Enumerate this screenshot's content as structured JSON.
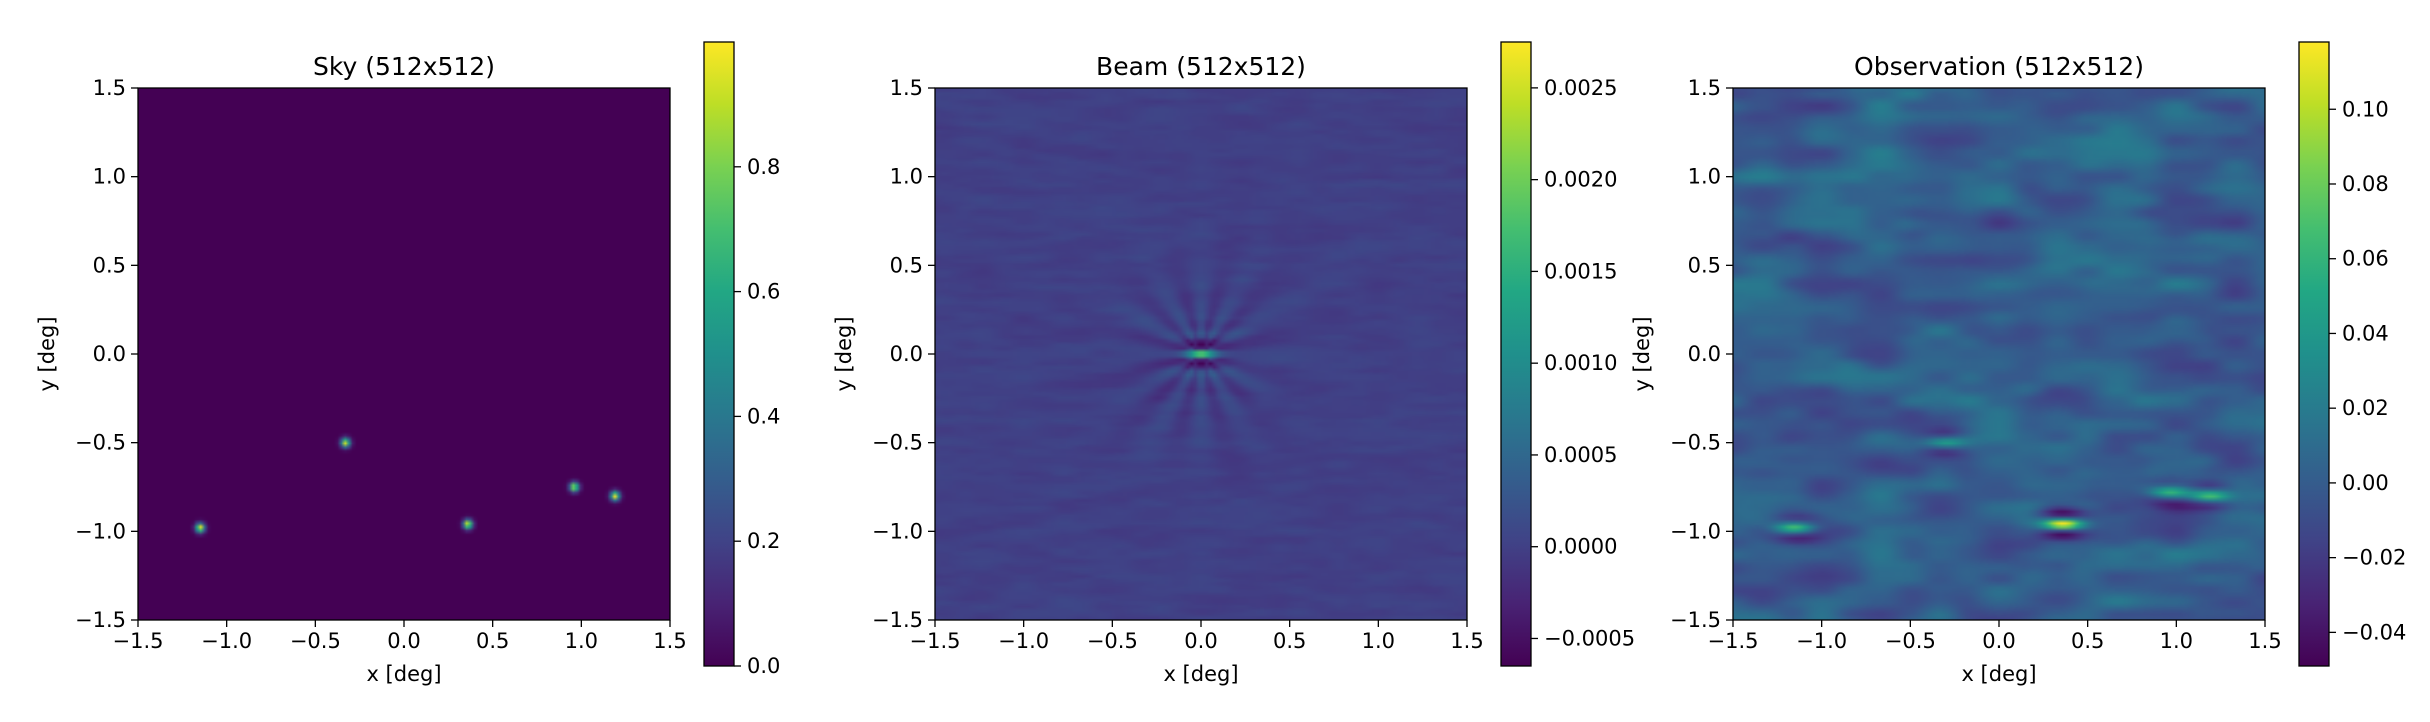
{
  "chart_data": [
    {
      "type": "heatmap",
      "title": "Sky (512x512)",
      "xlabel": "x [deg]",
      "ylabel": "y [deg]",
      "xlim": [
        -1.5,
        1.5
      ],
      "ylim": [
        -1.5,
        1.5
      ],
      "x_ticks": [
        -1.5,
        -1.0,
        -0.5,
        0.0,
        0.5,
        1.0,
        1.5
      ],
      "x_tick_labels": [
        "−1.5",
        "−1.0",
        "−0.5",
        "0.0",
        "0.5",
        "1.0",
        "1.5"
      ],
      "y_ticks": [
        1.5,
        1.0,
        0.5,
        0.0,
        -0.5,
        -1.0,
        -1.5
      ],
      "y_tick_labels": [
        "1.5",
        "1.0",
        "0.5",
        "0.0",
        "−0.5",
        "−1.0",
        "−1.5"
      ],
      "colormap": "viridis",
      "clim": [
        0.0,
        1.0
      ],
      "colorbar_ticks": [
        0.0,
        0.2,
        0.4,
        0.6,
        0.8
      ],
      "colorbar_tick_labels": [
        "0.0",
        "0.2",
        "0.4",
        "0.6",
        "0.8"
      ],
      "sources": [
        {
          "x": -1.15,
          "y": -0.98,
          "peak": 1.0
        },
        {
          "x": -0.33,
          "y": -0.5,
          "peak": 0.95
        },
        {
          "x": 0.36,
          "y": -0.96,
          "peak": 1.0
        },
        {
          "x": 0.96,
          "y": -0.75,
          "peak": 0.95
        },
        {
          "x": 1.19,
          "y": -0.8,
          "peak": 1.0
        }
      ]
    },
    {
      "type": "heatmap",
      "title": "Beam (512x512)",
      "xlabel": "x [deg]",
      "ylabel": "y [deg]",
      "xlim": [
        -1.5,
        1.5
      ],
      "ylim": [
        -1.5,
        1.5
      ],
      "x_ticks": [
        -1.5,
        -1.0,
        -0.5,
        0.0,
        0.5,
        1.0,
        1.5
      ],
      "x_tick_labels": [
        "−1.5",
        "−1.0",
        "−0.5",
        "0.0",
        "0.5",
        "1.0",
        "1.5"
      ],
      "y_ticks": [
        1.5,
        1.0,
        0.5,
        0.0,
        -0.5,
        -1.0,
        -1.5
      ],
      "y_tick_labels": [
        "1.5",
        "1.0",
        "0.5",
        "0.0",
        "−0.5",
        "−1.0",
        "−1.5"
      ],
      "colormap": "viridis",
      "clim": [
        -0.00065,
        0.00275
      ],
      "colorbar_ticks": [
        0.0025,
        0.002,
        0.0015,
        0.001,
        0.0005,
        0.0,
        -0.0005
      ],
      "colorbar_tick_labels": [
        "0.0025",
        "0.0020",
        "0.0015",
        "0.0010",
        "0.0005",
        "0.0000",
        "−0.0005"
      ],
      "peak": {
        "x": 0.0,
        "y": 0.0,
        "value": 0.0027
      }
    },
    {
      "type": "heatmap",
      "title": "Observation (512x512)",
      "xlabel": "x [deg]",
      "ylabel": "y [deg]",
      "xlim": [
        -1.5,
        1.5
      ],
      "ylim": [
        -1.5,
        1.5
      ],
      "x_ticks": [
        -1.5,
        -1.0,
        -0.5,
        0.0,
        0.5,
        1.0,
        1.5
      ],
      "x_tick_labels": [
        "−1.5",
        "−1.0",
        "−0.5",
        "0.0",
        "0.5",
        "1.0",
        "1.5"
      ],
      "y_ticks": [
        1.5,
        1.0,
        0.5,
        0.0,
        -0.5,
        -1.0,
        -1.5
      ],
      "y_tick_labels": [
        "1.5",
        "1.0",
        "0.5",
        "0.0",
        "−0.5",
        "−1.0",
        "−1.5"
      ],
      "colormap": "viridis",
      "clim": [
        -0.049,
        0.118
      ],
      "colorbar_ticks": [
        0.1,
        0.08,
        0.06,
        0.04,
        0.02,
        0.0,
        -0.02,
        -0.04
      ],
      "colorbar_tick_labels": [
        "0.10",
        "0.08",
        "0.06",
        "0.04",
        "0.02",
        "0.00",
        "−0.02",
        "−0.04"
      ],
      "sources": [
        {
          "x": -1.15,
          "y": -0.98,
          "peak": 0.07
        },
        {
          "x": -0.3,
          "y": -0.5,
          "peak": 0.045
        },
        {
          "x": 0.36,
          "y": -0.96,
          "peak": 0.118
        },
        {
          "x": 0.96,
          "y": -0.78,
          "peak": 0.05
        },
        {
          "x": 1.19,
          "y": -0.8,
          "peak": 0.06
        }
      ]
    }
  ]
}
